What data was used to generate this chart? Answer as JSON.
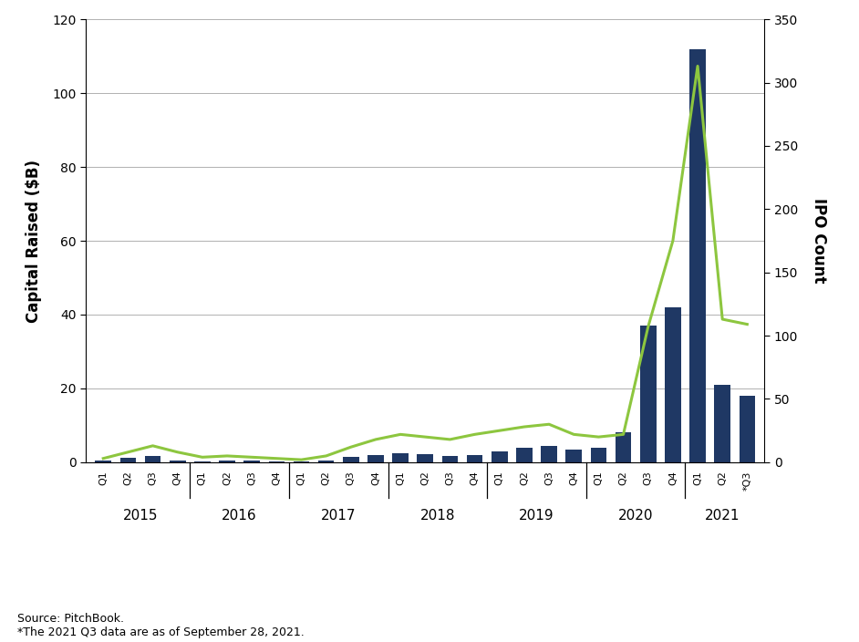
{
  "quarters": [
    "Q1",
    "Q2",
    "Q3",
    "Q4",
    "Q1",
    "Q2",
    "Q3",
    "Q4",
    "Q1",
    "Q2",
    "Q3",
    "Q4",
    "Q1",
    "Q2",
    "Q3",
    "Q4",
    "Q1",
    "Q2",
    "Q3",
    "Q4",
    "Q1",
    "Q2",
    "Q3",
    "Q4",
    "Q1",
    "Q2",
    "*Q3"
  ],
  "years": [
    "2015",
    "2016",
    "2017",
    "2018",
    "2019",
    "2020",
    "2021"
  ],
  "year_centers": [
    1.5,
    5.5,
    9.5,
    13.5,
    17.5,
    21.5,
    25.0
  ],
  "year_boundaries": [
    3.5,
    7.5,
    11.5,
    15.5,
    19.5,
    23.5
  ],
  "capital_raised": [
    0.4,
    1.3,
    1.8,
    0.5,
    0.3,
    0.5,
    0.4,
    0.2,
    0.3,
    0.5,
    1.5,
    2.0,
    2.5,
    2.2,
    1.8,
    2.0,
    3.0,
    4.0,
    4.5,
    3.5,
    3.8,
    8.0,
    37.0,
    42.0,
    112.0,
    21.0,
    18.0
  ],
  "ipo_count": [
    3,
    8,
    13,
    8,
    4,
    5,
    4,
    3,
    2,
    5,
    12,
    18,
    22,
    20,
    18,
    22,
    25,
    28,
    30,
    22,
    20,
    22,
    107,
    175,
    313,
    113,
    109
  ],
  "bar_color": "#1F3864",
  "line_color": "#8DC63F",
  "ylabel_left": "Capital Raised ($B)",
  "ylabel_right": "IPO Count",
  "ylim_left": [
    0,
    120
  ],
  "ylim_right": [
    0,
    350
  ],
  "yticks_left": [
    0,
    20,
    40,
    60,
    80,
    100,
    120
  ],
  "yticks_right": [
    0,
    50,
    100,
    150,
    200,
    250,
    300,
    350
  ],
  "source_line1": "Source: PitchBook.",
  "source_line2": "*The 2021 Q3 data are as of September 28, 2021.",
  "legend_capital": "Capital Raised",
  "legend_ipo": "IPO Count",
  "background_color": "#ffffff",
  "gridcolor": "#b0b0b0",
  "figsize": [
    9.42,
    7.04
  ],
  "dpi": 100
}
